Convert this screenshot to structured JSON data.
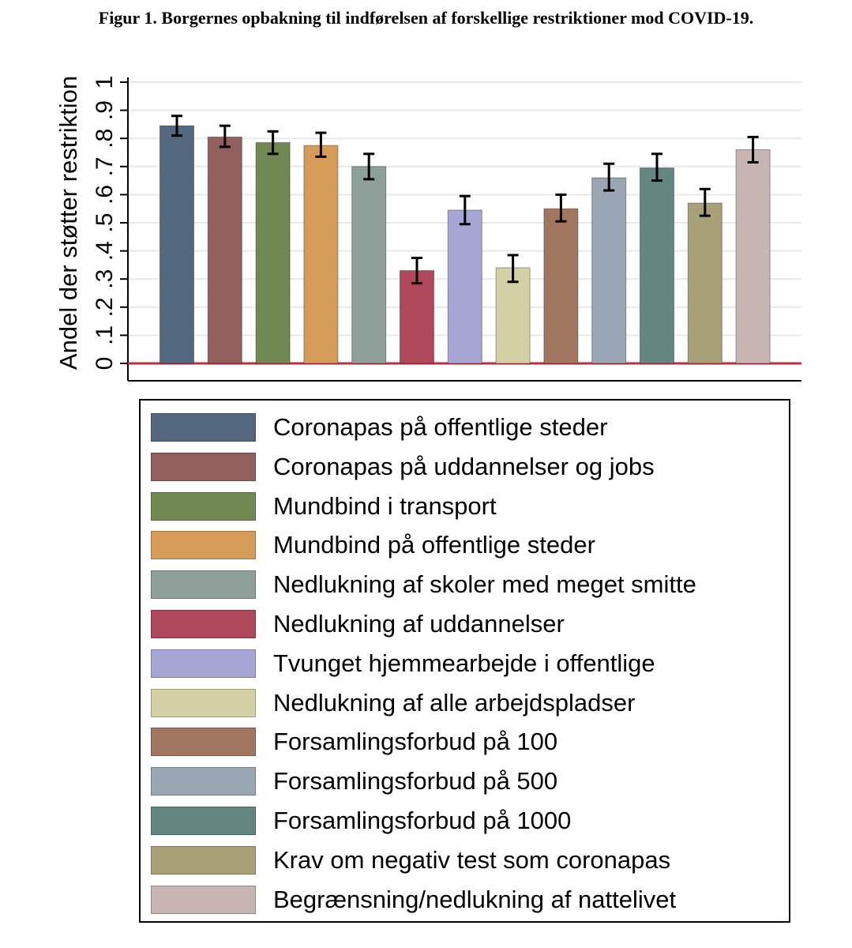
{
  "figure": {
    "caption": "Figur 1. Borgernes opbakning til indførelsen af forskellige restriktioner mod COVID-19."
  },
  "chart_data": {
    "type": "bar",
    "ylabel": "Andel der støtter restriktion",
    "ylim": [
      0,
      1
    ],
    "yticks": [
      "0",
      ".1",
      ".2",
      ".3",
      ".4",
      ".5",
      ".6",
      ".7",
      ".8",
      ".9",
      "1"
    ],
    "grid": true,
    "legend_position": "bottom",
    "reference_line": {
      "value": 0,
      "color": "#b5323f"
    },
    "series": [
      {
        "name": "Coronapas på offentlige steder",
        "value": 0.845,
        "ci_low": 0.81,
        "ci_high": 0.88,
        "color": "#53687f"
      },
      {
        "name": "Coronapas på uddannelser og jobs",
        "value": 0.805,
        "ci_low": 0.77,
        "ci_high": 0.845,
        "color": "#905f5e"
      },
      {
        "name": "Mundbind i transport",
        "value": 0.785,
        "ci_low": 0.745,
        "ci_high": 0.825,
        "color": "#718853"
      },
      {
        "name": "Mundbind på offentlige steder",
        "value": 0.775,
        "ci_low": 0.735,
        "ci_high": 0.82,
        "color": "#d69c57"
      },
      {
        "name": "Nedlukning af skoler med meget smitte",
        "value": 0.7,
        "ci_low": 0.655,
        "ci_high": 0.745,
        "color": "#8f9f99"
      },
      {
        "name": "Nedlukning af uddannelser",
        "value": 0.33,
        "ci_low": 0.285,
        "ci_high": 0.375,
        "color": "#b0485c"
      },
      {
        "name": "Tvunget hjemmearbejde i offentlige",
        "value": 0.545,
        "ci_low": 0.495,
        "ci_high": 0.595,
        "color": "#a7a5d4"
      },
      {
        "name": "Nedlukning af alle arbejdspladser",
        "value": 0.34,
        "ci_low": 0.29,
        "ci_high": 0.385,
        "color": "#d4d0a5"
      },
      {
        "name": "Forsamlingsforbud på 100",
        "value": 0.55,
        "ci_low": 0.505,
        "ci_high": 0.6,
        "color": "#a27660"
      },
      {
        "name": "Forsamlingsforbud på 500",
        "value": 0.66,
        "ci_low": 0.615,
        "ci_high": 0.71,
        "color": "#9aa6b3"
      },
      {
        "name": "Forsamlingsforbud på 1000",
        "value": 0.695,
        "ci_low": 0.65,
        "ci_high": 0.745,
        "color": "#638680"
      },
      {
        "name": "Krav om negativ test som coronapas",
        "value": 0.57,
        "ci_low": 0.525,
        "ci_high": 0.62,
        "color": "#a8a077"
      },
      {
        "name": "Begrænsning/nedlukning af nattelivet",
        "value": 0.76,
        "ci_low": 0.715,
        "ci_high": 0.805,
        "color": "#c7b5b3"
      }
    ]
  }
}
